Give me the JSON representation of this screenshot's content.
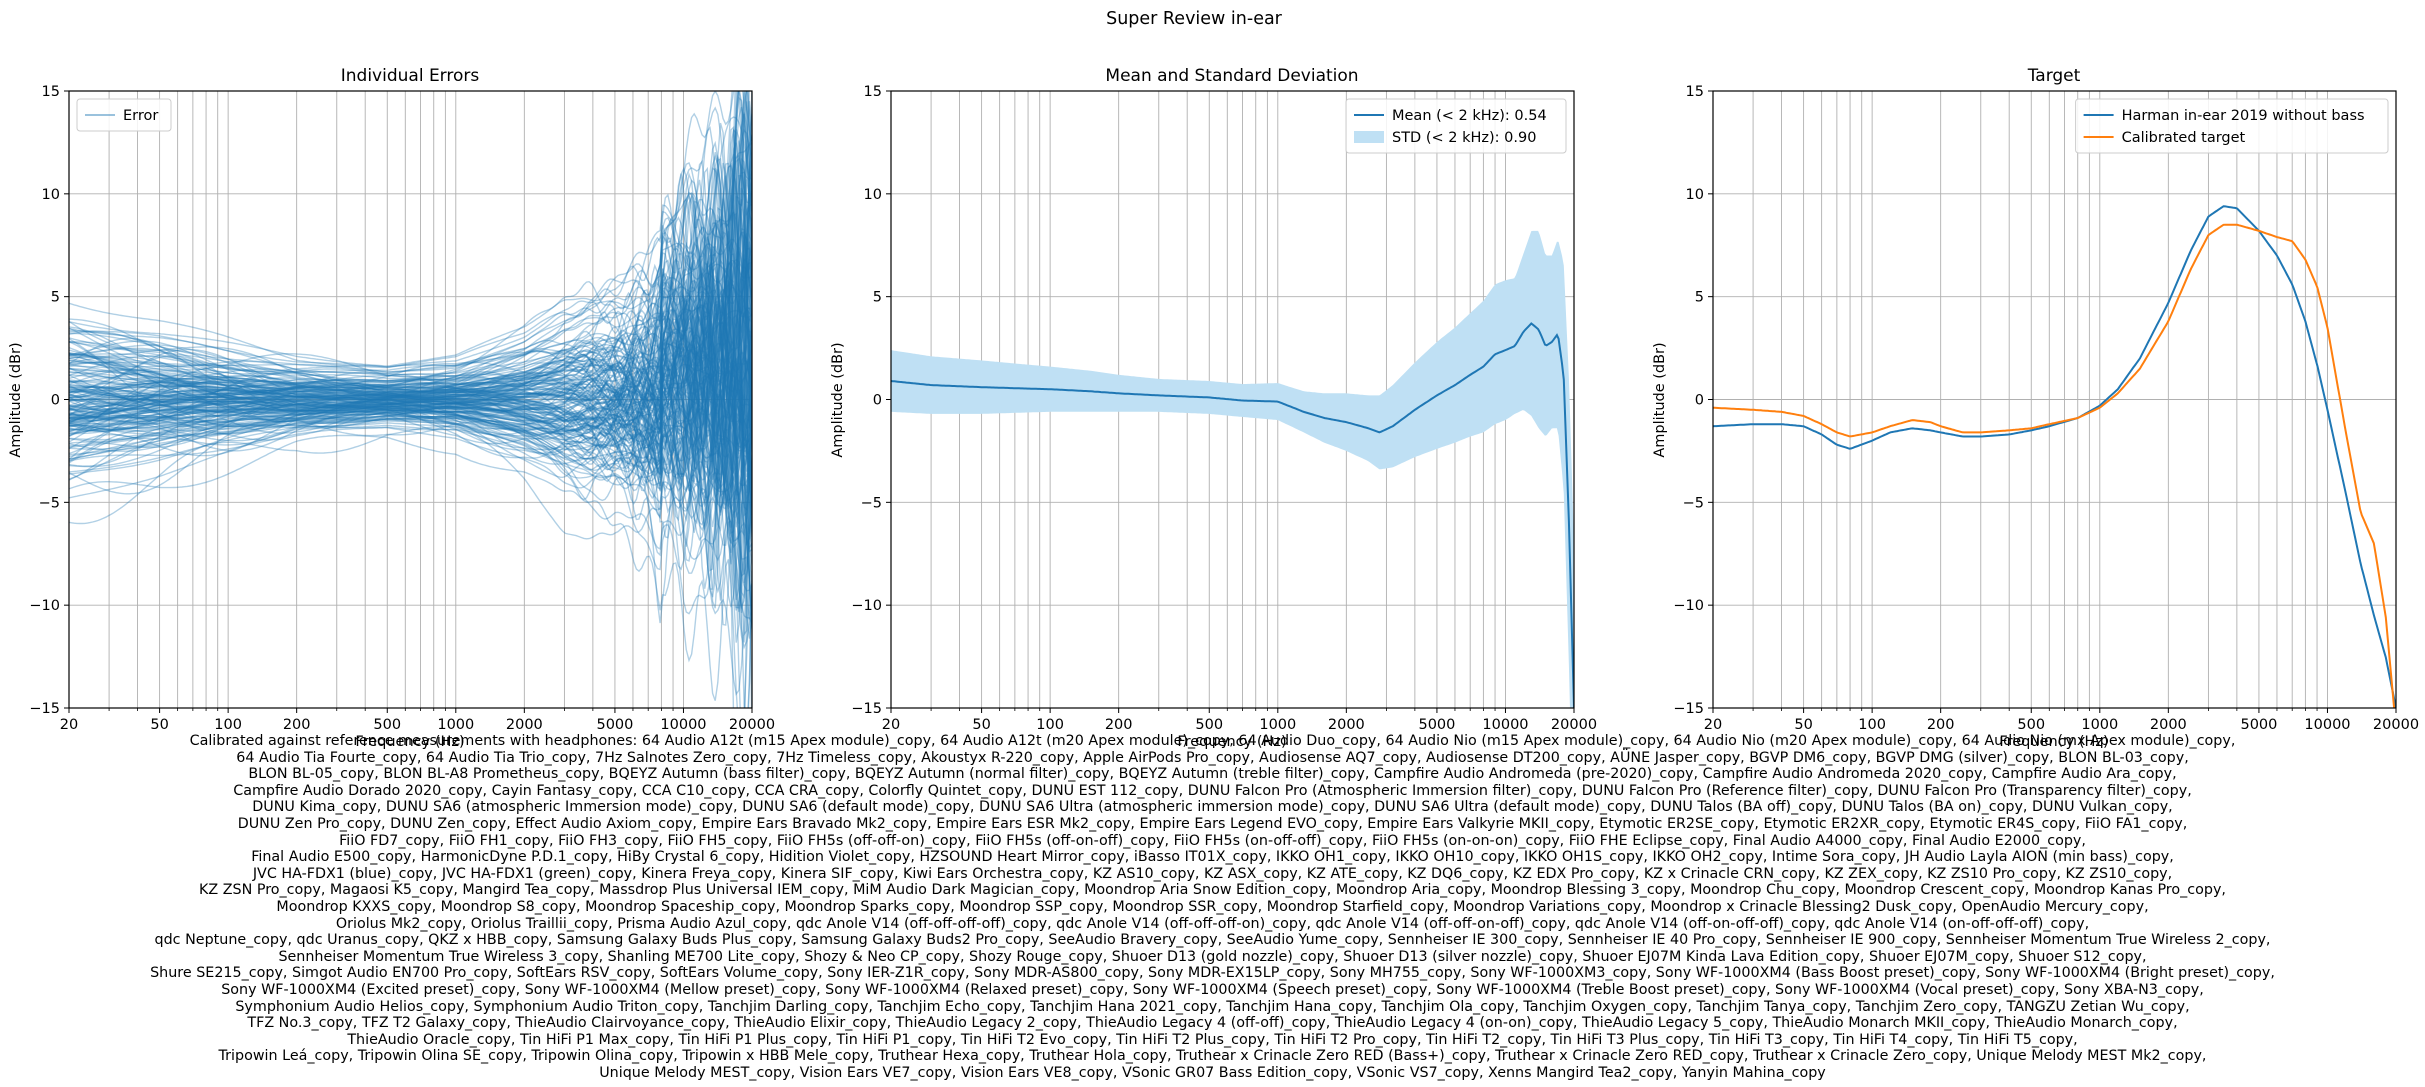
{
  "figure": {
    "suptitle": "Super Review in-ear",
    "caption_lines": [
      "Calibrated against reference measurements with headphones: 64 Audio A12t (m15 Apex module)_copy, 64 Audio A12t (m20 Apex module)_copy, 64 Audio Duo_copy, 64 Audio Nio (m15 Apex module)_copy, 64 Audio Nio (m20 Apex module)_copy, 64 Audio Nio (mx Apex module)_copy,",
      "64 Audio Tia Fourte_copy, 64 Audio Tia Trio_copy, 7Hz Salnotes Zero_copy, 7Hz Timeless_copy, Akoustyx R-220_copy, Apple AirPods Pro_copy, Audiosense AQ7_copy, Audiosense DT200_copy, AÜNE Jasper_copy, BGVP DM6_copy, BGVP DMG (silver)_copy, BLON BL-03_copy,",
      "BLON BL-05_copy, BLON BL-A8 Prometheus_copy, BQEYZ Autumn (bass filter)_copy, BQEYZ Autumn (normal filter)_copy, BQEYZ Autumn (treble filter)_copy, Campfire Audio Andromeda (pre-2020)_copy, Campfire Audio Andromeda 2020_copy, Campfire Audio Ara_copy,",
      "Campfire Audio Dorado 2020_copy, Cayin Fantasy_copy, CCA C10_copy, CCA CRA_copy, Colorfly Quintet_copy, DUNU EST 112_copy, DUNU Falcon Pro (Atmospheric Immersion filter)_copy, DUNU Falcon Pro (Reference filter)_copy, DUNU Falcon Pro (Transparency filter)_copy,",
      "DUNU Kima_copy, DUNU SA6 (atmospheric Immersion mode)_copy, DUNU SA6 (default mode)_copy, DUNU SA6 Ultra (atmospheric immersion mode)_copy, DUNU SA6 Ultra (default mode)_copy, DUNU Talos (BA off)_copy, DUNU Talos (BA on)_copy, DUNU Vulkan_copy,",
      "DUNU Zen Pro_copy, DUNU Zen_copy, Effect Audio Axiom_copy, Empire Ears Bravado Mk2_copy, Empire Ears ESR Mk2_copy, Empire Ears Legend EVO_copy, Empire Ears Valkyrie MKII_copy, Etymotic ER2SE_copy, Etymotic ER2XR_copy, Etymotic ER4S_copy, FiiO FA1_copy,",
      "FiiO FD7_copy, FiiO FH1_copy, FiiO FH3_copy, FiiO FH5_copy, FiiO FH5s (off-off-on)_copy, FiiO FH5s (off-on-off)_copy, FiiO FH5s (on-off-off)_copy, FiiO FH5s (on-on-on)_copy, FiiO FHE Eclipse_copy, Final Audio A4000_copy, Final Audio E2000_copy,",
      "Final Audio E500_copy, HarmonicDyne P.D.1_copy, HiBy Crystal 6_copy, Hidition Violet_copy, HZSOUND Heart Mirror_copy, iBasso IT01X_copy, IKKO OH1_copy, IKKO OH10_copy, IKKO OH1S_copy, IKKO OH2_copy, Intime Sora_copy, JH Audio Layla AION (min bass)_copy,",
      "JVC HA-FDX1 (blue)_copy, JVC HA-FDX1 (green)_copy, Kinera Freya_copy, Kinera SIF_copy, Kiwi Ears Orchestra_copy, KZ AS10_copy, KZ ASX_copy, KZ ATE_copy, KZ DQ6_copy, KZ EDX Pro_copy, KZ x Crinacle CRN_copy, KZ ZEX_copy, KZ ZS10 Pro_copy, KZ ZS10_copy,",
      "KZ ZSN Pro_copy, Magaosi K5_copy, Mangird Tea_copy, Massdrop Plus Universal IEM_copy, MiM Audio Dark Magician_copy, Moondrop Aria Snow Edition_copy, Moondrop Aria_copy, Moondrop Blessing 3_copy, Moondrop Chu_copy, Moondrop Crescent_copy, Moondrop Kanas Pro_copy,",
      "Moondrop KXXS_copy, Moondrop S8_copy, Moondrop Spaceship_copy, Moondrop Sparks_copy, Moondrop SSP_copy, Moondrop SSR_copy, Moondrop Starfield_copy, Moondrop Variations_copy, Moondrop x Crinacle Blessing2 Dusk_copy, OpenAudio Mercury_copy,",
      "Oriolus Mk2_copy, Oriolus Traillii_copy, Prisma Audio Azul_copy, qdc Anole V14 (off-off-off-off)_copy, qdc Anole V14 (off-off-off-on)_copy, qdc Anole V14 (off-off-on-off)_copy, qdc Anole V14 (off-on-off-off)_copy, qdc Anole V14 (on-off-off-off)_copy,",
      "qdc Neptune_copy, qdc Uranus_copy, QKZ x HBB_copy, Samsung Galaxy Buds Plus_copy, Samsung Galaxy Buds2 Pro_copy, SeeAudio Bravery_copy, SeeAudio Yume_copy, Sennheiser IE 300_copy, Sennheiser IE 40 Pro_copy, Sennheiser IE 900_copy, Sennheiser Momentum True Wireless 2_copy,",
      "Sennheiser Momentum True Wireless 3_copy, Shanling ME700 Lite_copy, Shozy & Neo CP_copy, Shozy Rouge_copy, Shuoer D13 (gold nozzle)_copy, Shuoer D13 (silver nozzle)_copy, Shuoer EJ07M Kinda Lava Edition_copy, Shuoer EJ07M_copy, Shuoer S12_copy,",
      "Shure SE215_copy, Simgot Audio EN700 Pro_copy, SoftEars RSV_copy, SoftEars Volume_copy, Sony IER-Z1R_copy, Sony MDR-AS800_copy, Sony MDR-EX15LP_copy, Sony MH755_copy, Sony WF-1000XM3_copy, Sony WF-1000XM4 (Bass Boost preset)_copy, Sony WF-1000XM4 (Bright preset)_copy,",
      "Sony WF-1000XM4 (Excited preset)_copy, Sony WF-1000XM4 (Mellow preset)_copy, Sony WF-1000XM4 (Relaxed preset)_copy, Sony WF-1000XM4 (Speech preset)_copy, Sony WF-1000XM4 (Treble Boost preset)_copy, Sony WF-1000XM4 (Vocal preset)_copy, Sony XBA-N3_copy,",
      "Symphonium Audio Helios_copy, Symphonium Audio Triton_copy, Tanchjim Darling_copy, Tanchjim Echo_copy, Tanchjim Hana 2021_copy, Tanchjim Hana_copy, Tanchjim Ola_copy, Tanchjim Oxygen_copy, Tanchjim Tanya_copy, Tanchjim Zero_copy, TANGZU Zetian Wu_copy,",
      "TFZ No.3_copy, TFZ T2 Galaxy_copy, ThieAudio Clairvoyance_copy, ThieAudio Elixir_copy, ThieAudio Legacy 2_copy, ThieAudio Legacy 4 (off-off)_copy, ThieAudio Legacy 4 (on-on)_copy, ThieAudio Legacy 5_copy, ThieAudio Monarch MKII_copy, ThieAudio Monarch_copy,",
      "ThieAudio Oracle_copy, Tin HiFi P1 Max_copy, Tin HiFi P1 Plus_copy, Tin HiFi P1_copy, Tin HiFi T2 Evo_copy, Tin HiFi T2 Plus_copy, Tin HiFi T2 Pro_copy, Tin HiFi T2_copy, Tin HiFi T3 Plus_copy, Tin HiFi T3_copy, Tin HiFi T4_copy, Tin HiFi T5_copy,",
      "Tripowin Leá_copy, Tripowin Olina SE_copy, Tripowin Olina_copy, Tripowin x HBB Mele_copy, Truthear Hexa_copy, Truthear Hola_copy, Truthear x Crinacle Zero RED (Bass+)_copy, Truthear x Crinacle Zero RED_copy, Truthear x Crinacle Zero_copy, Unique Melody MEST Mk2_copy,",
      "Unique Melody MEST_copy, Vision Ears VE7_copy, Vision Ears VE8_copy, VSonic GR07 Bass Edition_copy, VSonic VS7_copy, Xenns Mangird Tea2_copy, Yanyin Mahina_copy"
    ],
    "colors": {
      "blue": "#1f77b4",
      "orange": "#ff7f0e",
      "std_fill": "#bfe0f4",
      "grid": "#b0b0b0"
    }
  },
  "chart_data": [
    {
      "type": "line",
      "title": "Individual Errors",
      "xlabel": "Frequency (Hz)",
      "ylabel": "Amplitude (dBr)",
      "xscale": "log",
      "xlim": [
        20,
        20000
      ],
      "ylim": [
        -15,
        15
      ],
      "xticks": [
        20,
        50,
        100,
        200,
        500,
        1000,
        2000,
        5000,
        10000,
        20000
      ],
      "xtick_labels": [
        "20",
        "50",
        "100",
        "200",
        "500",
        "1000",
        "2000",
        "5000",
        "10000",
        "20000"
      ],
      "yticks": [
        -15,
        -10,
        -5,
        0,
        5,
        10,
        15
      ],
      "grid": true,
      "legend": {
        "position": "upper-left",
        "entries": [
          {
            "label": "Error",
            "color": "#1f77b4"
          }
        ]
      },
      "series_note": "about 190 semi-transparent error curves, one per headphone",
      "envelope": {
        "x": [
          20,
          50,
          100,
          200,
          500,
          1000,
          2000,
          3000,
          5000,
          8000,
          10000,
          15000,
          20000
        ],
        "typical_spread_db": [
          3.0,
          2.5,
          2.0,
          1.5,
          1.2,
          1.5,
          2.5,
          3.5,
          4.0,
          5.5,
          6.5,
          8.0,
          10.0
        ]
      }
    },
    {
      "type": "line",
      "title": "Mean and Standard Deviation",
      "xlabel": "Frequency (Hz)",
      "ylabel": "Amplitude (dBr)",
      "xscale": "log",
      "xlim": [
        20,
        20000
      ],
      "ylim": [
        -15,
        15
      ],
      "xticks": [
        20,
        50,
        100,
        200,
        500,
        1000,
        2000,
        5000,
        10000,
        20000
      ],
      "xtick_labels": [
        "20",
        "50",
        "100",
        "200",
        "500",
        "1000",
        "2000",
        "5000",
        "10000",
        "20000"
      ],
      "yticks": [
        -15,
        -10,
        -5,
        0,
        5,
        10,
        15
      ],
      "grid": true,
      "legend": {
        "position": "upper-right",
        "entries": [
          {
            "label": "Mean (< 2 kHz): 0.54",
            "color": "#1f77b4",
            "kind": "line"
          },
          {
            "label": "STD (< 2 kHz): 0.90",
            "color": "#bfe0f4",
            "kind": "patch"
          }
        ]
      },
      "x": [
        20,
        30,
        50,
        70,
        100,
        150,
        200,
        300,
        500,
        700,
        1000,
        1300,
        1600,
        2000,
        2500,
        2800,
        3200,
        4000,
        5000,
        6000,
        7000,
        8000,
        9000,
        10000,
        11000,
        12000,
        13000,
        14000,
        15000,
        16000,
        17000,
        18000,
        19000,
        20000
      ],
      "series": [
        {
          "name": "Mean (< 2 kHz): 0.54",
          "values": [
            0.9,
            0.7,
            0.6,
            0.55,
            0.5,
            0.4,
            0.3,
            0.2,
            0.1,
            -0.05,
            -0.1,
            -0.6,
            -0.9,
            -1.1,
            -1.4,
            -1.6,
            -1.3,
            -0.5,
            0.2,
            0.7,
            1.2,
            1.6,
            2.2,
            2.4,
            2.6,
            3.3,
            3.7,
            3.4,
            2.6,
            2.8,
            3.2,
            1.2,
            -6.0,
            -15.0
          ]
        },
        {
          "name": "STD (< 2 kHz): 0.90",
          "values": [
            1.5,
            1.4,
            1.3,
            1.2,
            1.1,
            1.0,
            0.9,
            0.8,
            0.8,
            0.8,
            0.9,
            1.0,
            1.2,
            1.4,
            1.6,
            1.8,
            2.0,
            2.3,
            2.6,
            2.8,
            3.0,
            3.2,
            3.4,
            3.4,
            3.3,
            3.8,
            4.5,
            4.8,
            4.4,
            4.2,
            4.6,
            5.5,
            7.0,
            8.0
          ]
        }
      ]
    },
    {
      "type": "line",
      "title": "Target",
      "xlabel": "Frequency (Hz)",
      "ylabel": "Amplitude (dBr)",
      "xscale": "log",
      "xlim": [
        20,
        20000
      ],
      "ylim": [
        -15,
        15
      ],
      "xticks": [
        20,
        50,
        100,
        200,
        500,
        1000,
        2000,
        5000,
        10000,
        20000
      ],
      "xtick_labels": [
        "20",
        "50",
        "100",
        "200",
        "500",
        "1000",
        "2000",
        "5000",
        "10000",
        "20000"
      ],
      "yticks": [
        -15,
        -10,
        -5,
        0,
        5,
        10,
        15
      ],
      "grid": true,
      "legend": {
        "position": "upper-right",
        "entries": [
          {
            "label": "Harman in-ear 2019 without bass",
            "color": "#1f77b4"
          },
          {
            "label": "Calibrated target",
            "color": "#ff7f0e"
          }
        ]
      },
      "x": [
        20,
        30,
        40,
        50,
        60,
        70,
        80,
        100,
        120,
        150,
        180,
        200,
        250,
        300,
        400,
        500,
        600,
        800,
        1000,
        1200,
        1500,
        2000,
        2500,
        3000,
        3500,
        4000,
        5000,
        6000,
        7000,
        8000,
        9000,
        10000,
        12000,
        14000,
        16000,
        18000,
        20000
      ],
      "series": [
        {
          "name": "Harman in-ear 2019 without bass",
          "values": [
            -1.3,
            -1.2,
            -1.2,
            -1.3,
            -1.7,
            -2.2,
            -2.4,
            -2.0,
            -1.6,
            -1.4,
            -1.5,
            -1.6,
            -1.8,
            -1.8,
            -1.7,
            -1.5,
            -1.3,
            -0.9,
            -0.3,
            0.5,
            2.0,
            4.7,
            7.2,
            8.9,
            9.4,
            9.3,
            8.2,
            7.0,
            5.6,
            3.8,
            1.7,
            -0.5,
            -4.5,
            -8.0,
            -10.5,
            -12.5,
            -15.0
          ]
        },
        {
          "name": "Calibrated target",
          "values": [
            -0.4,
            -0.5,
            -0.6,
            -0.8,
            -1.2,
            -1.6,
            -1.8,
            -1.6,
            -1.3,
            -1.0,
            -1.1,
            -1.3,
            -1.6,
            -1.6,
            -1.5,
            -1.4,
            -1.2,
            -0.9,
            -0.4,
            0.3,
            1.5,
            3.8,
            6.3,
            8.0,
            8.5,
            8.5,
            8.2,
            7.9,
            7.7,
            6.8,
            5.5,
            3.5,
            -1.5,
            -5.5,
            -7.0,
            -10.5,
            -16.0
          ]
        }
      ]
    }
  ]
}
